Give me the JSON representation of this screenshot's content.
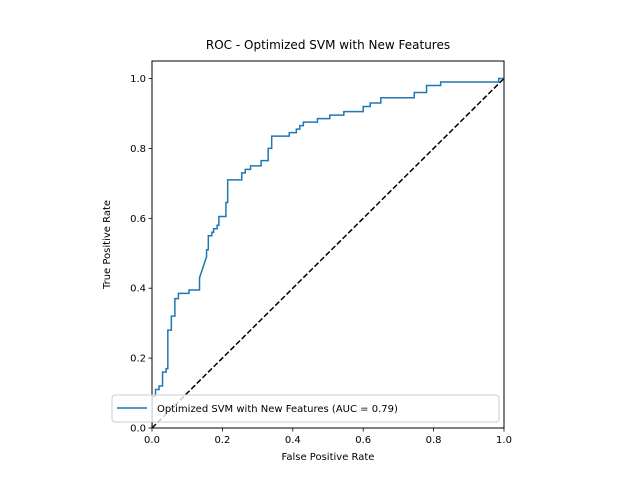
{
  "chart_data": {
    "type": "line",
    "title": "ROC - Optimized SVM with New Features",
    "xlabel": "False Positive Rate",
    "ylabel": "True Positive Rate",
    "xlim": [
      0.0,
      1.0
    ],
    "ylim": [
      0.0,
      1.05
    ],
    "xticks": [
      0.0,
      0.2,
      0.4,
      0.6,
      0.8,
      1.0
    ],
    "yticks": [
      0.0,
      0.2,
      0.4,
      0.6,
      0.8,
      1.0
    ],
    "xtick_labels": [
      "0.0",
      "0.2",
      "0.4",
      "0.6",
      "0.8",
      "1.0"
    ],
    "ytick_labels": [
      "0.0",
      "0.2",
      "0.4",
      "0.6",
      "0.8",
      "1.0"
    ],
    "grid": false,
    "legend": {
      "placement": "lower-right",
      "entries": [
        "Optimized SVM with New Features (AUC = 0.79)"
      ]
    },
    "series": [
      {
        "name": "Optimized SVM with New Features (AUC = 0.79)",
        "color": "#1f77b4",
        "style": "solid",
        "points": [
          [
            0.0,
            0.0
          ],
          [
            0.0,
            0.09
          ],
          [
            0.01,
            0.09
          ],
          [
            0.01,
            0.11
          ],
          [
            0.02,
            0.11
          ],
          [
            0.02,
            0.12
          ],
          [
            0.03,
            0.12
          ],
          [
            0.03,
            0.16
          ],
          [
            0.04,
            0.16
          ],
          [
            0.04,
            0.17
          ],
          [
            0.045,
            0.17
          ],
          [
            0.045,
            0.28
          ],
          [
            0.055,
            0.28
          ],
          [
            0.055,
            0.32
          ],
          [
            0.065,
            0.32
          ],
          [
            0.065,
            0.37
          ],
          [
            0.075,
            0.37
          ],
          [
            0.075,
            0.385
          ],
          [
            0.105,
            0.385
          ],
          [
            0.105,
            0.395
          ],
          [
            0.135,
            0.395
          ],
          [
            0.135,
            0.43
          ],
          [
            0.155,
            0.49
          ],
          [
            0.155,
            0.51
          ],
          [
            0.16,
            0.51
          ],
          [
            0.16,
            0.55
          ],
          [
            0.17,
            0.55
          ],
          [
            0.17,
            0.56
          ],
          [
            0.175,
            0.56
          ],
          [
            0.175,
            0.57
          ],
          [
            0.185,
            0.57
          ],
          [
            0.185,
            0.58
          ],
          [
            0.19,
            0.58
          ],
          [
            0.19,
            0.605
          ],
          [
            0.21,
            0.605
          ],
          [
            0.21,
            0.645
          ],
          [
            0.215,
            0.645
          ],
          [
            0.215,
            0.71
          ],
          [
            0.255,
            0.71
          ],
          [
            0.255,
            0.73
          ],
          [
            0.265,
            0.73
          ],
          [
            0.265,
            0.74
          ],
          [
            0.28,
            0.74
          ],
          [
            0.28,
            0.75
          ],
          [
            0.31,
            0.75
          ],
          [
            0.31,
            0.765
          ],
          [
            0.33,
            0.765
          ],
          [
            0.33,
            0.8
          ],
          [
            0.34,
            0.8
          ],
          [
            0.34,
            0.835
          ],
          [
            0.39,
            0.835
          ],
          [
            0.39,
            0.845
          ],
          [
            0.41,
            0.845
          ],
          [
            0.41,
            0.855
          ],
          [
            0.42,
            0.855
          ],
          [
            0.42,
            0.865
          ],
          [
            0.43,
            0.865
          ],
          [
            0.43,
            0.875
          ],
          [
            0.47,
            0.875
          ],
          [
            0.47,
            0.885
          ],
          [
            0.505,
            0.885
          ],
          [
            0.505,
            0.895
          ],
          [
            0.545,
            0.895
          ],
          [
            0.545,
            0.905
          ],
          [
            0.6,
            0.905
          ],
          [
            0.6,
            0.92
          ],
          [
            0.62,
            0.92
          ],
          [
            0.62,
            0.93
          ],
          [
            0.65,
            0.93
          ],
          [
            0.65,
            0.945
          ],
          [
            0.745,
            0.945
          ],
          [
            0.745,
            0.96
          ],
          [
            0.78,
            0.96
          ],
          [
            0.78,
            0.98
          ],
          [
            0.82,
            0.98
          ],
          [
            0.82,
            0.99
          ],
          [
            0.985,
            0.99
          ],
          [
            0.985,
            1.0
          ],
          [
            1.0,
            1.0
          ]
        ]
      },
      {
        "name": "",
        "color": "#000000",
        "style": "dashed",
        "points": [
          [
            0.0,
            0.0
          ],
          [
            1.0,
            1.0
          ]
        ]
      }
    ]
  }
}
